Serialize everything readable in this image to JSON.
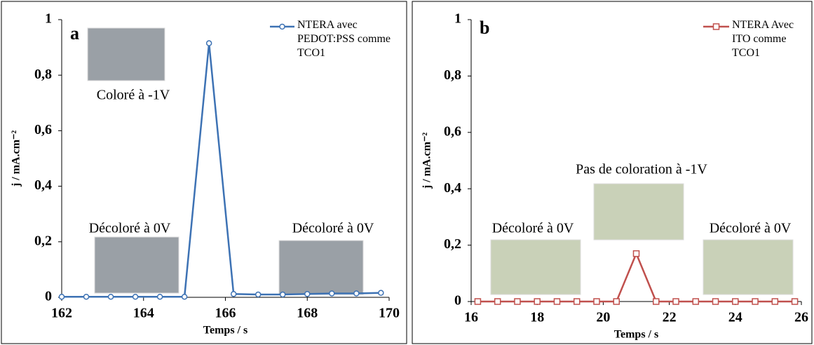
{
  "chart_data": [
    {
      "type": "line",
      "panel_label": "a",
      "x_label": "Temps / s",
      "y_label": "j / mA.cm⁻²",
      "xlim": [
        162,
        170
      ],
      "xticks": [
        162,
        164,
        166,
        168,
        170
      ],
      "ylim": [
        0,
        1
      ],
      "yticks": [
        0,
        {
          "value": 0.2,
          "label": "0,2"
        },
        {
          "value": 0.4,
          "label": "0,4"
        },
        {
          "value": 0.6,
          "label": "0,6"
        },
        {
          "value": 0.8,
          "label": "0,8"
        },
        1
      ],
      "x": [
        162.0,
        162.6,
        163.2,
        163.8,
        164.4,
        165.0,
        165.6,
        166.2,
        166.8,
        167.4,
        168.0,
        168.6,
        169.2,
        169.8
      ],
      "series": [
        {
          "name": "NTERA avec PEDOT:PSS comme TCO1",
          "color": "#3d72b4",
          "marker": "circle",
          "values": [
            0.002,
            0.002,
            0.002,
            0.002,
            0.002,
            0.002,
            0.915,
            0.012,
            0.01,
            0.01,
            0.012,
            0.014,
            0.014,
            0.016
          ]
        }
      ],
      "annotations": [
        "Coloré à -1V",
        "Décoloré à 0V",
        "Décoloré à 0V"
      ]
    },
    {
      "type": "line",
      "panel_label": "b",
      "x_label": "Temps / s",
      "y_label": "j / mA.cm⁻²",
      "xlim": [
        16,
        26
      ],
      "xticks": [
        16,
        18,
        20,
        22,
        24,
        26
      ],
      "ylim": [
        0,
        1
      ],
      "yticks": [
        0,
        {
          "value": 0.2,
          "label": "0,2"
        },
        {
          "value": 0.4,
          "label": "0,4"
        },
        {
          "value": 0.6,
          "label": "0,6"
        },
        {
          "value": 0.8,
          "label": "0,8"
        },
        1
      ],
      "x": [
        16.2,
        16.8,
        17.4,
        18.0,
        18.6,
        19.2,
        19.8,
        20.4,
        21.0,
        21.6,
        22.2,
        22.8,
        23.4,
        24.0,
        24.6,
        25.2,
        25.8
      ],
      "series": [
        {
          "name": "NTERA Avec ITO comme TCO1",
          "color": "#c0504d",
          "marker": "square",
          "values": [
            0,
            0,
            0,
            0,
            0,
            0,
            0,
            0,
            0.17,
            0,
            0,
            0,
            0,
            0,
            0,
            0,
            0
          ]
        }
      ],
      "annotations": [
        "Pas de coloration à -1V",
        "Décoloré à 0V",
        "Décoloré à 0V"
      ]
    }
  ]
}
